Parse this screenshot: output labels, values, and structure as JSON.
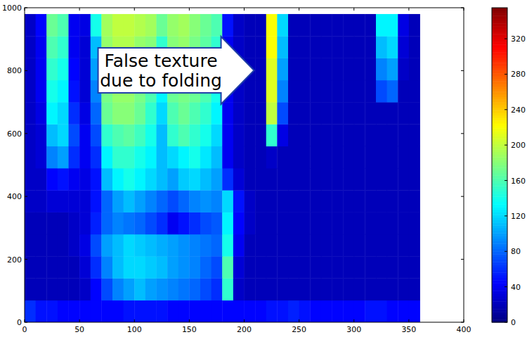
{
  "chart_data": {
    "type": "heatmap",
    "annotation": {
      "text": [
        "False texture",
        "due to folding"
      ],
      "xy": [
        209,
        801
      ]
    },
    "xlim": [
      0,
      400
    ],
    "ylim": [
      0,
      1000
    ],
    "xticks": [
      0,
      50,
      100,
      150,
      200,
      250,
      300,
      350,
      400
    ],
    "yticks": [
      0,
      200,
      400,
      600,
      800,
      1000
    ],
    "grid": false,
    "x_bins": [
      0,
      10,
      20,
      30,
      40,
      50,
      60,
      70,
      80,
      90,
      100,
      110,
      120,
      130,
      140,
      150,
      160,
      170,
      180,
      190,
      200,
      210,
      220,
      230,
      240,
      250,
      260,
      270,
      280,
      290,
      300,
      310,
      320,
      330,
      340,
      350,
      360
    ],
    "y_bins": [
      0,
      70,
      140,
      210,
      280,
      350,
      420,
      490,
      560,
      630,
      700,
      770,
      840,
      910,
      980
    ],
    "cells": [
      [
        60,
        50,
        50,
        45,
        45,
        45,
        45,
        45,
        45,
        50,
        50,
        50,
        50,
        45,
        45,
        45,
        45,
        45,
        45,
        45,
        45,
        45,
        50,
        50,
        55,
        50,
        45,
        45,
        45,
        45,
        45,
        50,
        50,
        45,
        45,
        45
      ],
      [
        20,
        20,
        20,
        20,
        20,
        25,
        45,
        70,
        90,
        100,
        110,
        100,
        95,
        90,
        85,
        80,
        70,
        60,
        150,
        25,
        20,
        20,
        20,
        20,
        20,
        20,
        20,
        20,
        20,
        20,
        20,
        20,
        20,
        20,
        20,
        20
      ],
      [
        20,
        20,
        20,
        20,
        20,
        30,
        60,
        90,
        110,
        120,
        120,
        115,
        110,
        100,
        95,
        90,
        80,
        70,
        160,
        30,
        20,
        20,
        20,
        20,
        20,
        20,
        20,
        20,
        20,
        20,
        20,
        20,
        20,
        20,
        20,
        20
      ],
      [
        20,
        20,
        20,
        20,
        25,
        35,
        70,
        100,
        110,
        120,
        115,
        110,
        105,
        100,
        95,
        90,
        85,
        80,
        140,
        40,
        20,
        20,
        20,
        20,
        20,
        20,
        20,
        20,
        20,
        20,
        20,
        20,
        20,
        20,
        20,
        20
      ],
      [
        20,
        20,
        20,
        20,
        25,
        30,
        55,
        80,
        90,
        85,
        80,
        70,
        60,
        40,
        50,
        60,
        70,
        75,
        130,
        45,
        25,
        20,
        20,
        20,
        20,
        20,
        20,
        20,
        20,
        20,
        20,
        20,
        20,
        20,
        20,
        20
      ],
      [
        25,
        25,
        30,
        30,
        30,
        30,
        50,
        80,
        100,
        110,
        100,
        90,
        80,
        70,
        80,
        90,
        95,
        90,
        120,
        50,
        25,
        20,
        20,
        20,
        20,
        20,
        20,
        20,
        20,
        20,
        20,
        20,
        20,
        20,
        20,
        20
      ],
      [
        25,
        25,
        45,
        50,
        40,
        35,
        50,
        110,
        130,
        140,
        130,
        120,
        110,
        100,
        115,
        120,
        110,
        100,
        60,
        30,
        20,
        20,
        20,
        20,
        20,
        20,
        20,
        20,
        20,
        20,
        20,
        20,
        20,
        20,
        20,
        20
      ],
      [
        25,
        30,
        90,
        100,
        60,
        40,
        60,
        130,
        150,
        150,
        140,
        130,
        110,
        120,
        130,
        140,
        125,
        110,
        40,
        25,
        20,
        20,
        25,
        20,
        20,
        20,
        20,
        20,
        20,
        20,
        20,
        20,
        20,
        20,
        20,
        20
      ],
      [
        25,
        30,
        110,
        120,
        70,
        40,
        70,
        150,
        160,
        165,
        155,
        140,
        110,
        150,
        160,
        150,
        140,
        120,
        40,
        25,
        20,
        20,
        150,
        35,
        20,
        20,
        20,
        20,
        20,
        20,
        20,
        20,
        20,
        20,
        20,
        20
      ],
      [
        25,
        35,
        130,
        120,
        60,
        35,
        80,
        170,
        180,
        180,
        170,
        150,
        120,
        160,
        170,
        160,
        150,
        130,
        40,
        25,
        20,
        20,
        200,
        70,
        20,
        20,
        20,
        20,
        20,
        20,
        20,
        20,
        20,
        20,
        20,
        20
      ],
      [
        25,
        40,
        140,
        130,
        50,
        30,
        90,
        175,
        185,
        185,
        175,
        160,
        130,
        170,
        175,
        170,
        160,
        140,
        40,
        25,
        20,
        20,
        210,
        90,
        20,
        20,
        20,
        20,
        20,
        20,
        20,
        20,
        70,
        80,
        20,
        20
      ],
      [
        25,
        40,
        150,
        140,
        45,
        30,
        100,
        180,
        190,
        190,
        180,
        170,
        140,
        175,
        180,
        170,
        160,
        145,
        40,
        25,
        20,
        20,
        210,
        100,
        20,
        20,
        20,
        20,
        20,
        20,
        20,
        20,
        90,
        100,
        25,
        20
      ],
      [
        25,
        40,
        160,
        150,
        40,
        30,
        110,
        185,
        195,
        195,
        185,
        180,
        150,
        180,
        185,
        175,
        165,
        150,
        40,
        25,
        20,
        20,
        220,
        110,
        20,
        20,
        20,
        20,
        20,
        20,
        20,
        20,
        110,
        120,
        30,
        20
      ],
      [
        25,
        45,
        170,
        160,
        40,
        35,
        140,
        190,
        200,
        200,
        195,
        190,
        170,
        185,
        190,
        180,
        170,
        160,
        50,
        25,
        20,
        20,
        220,
        120,
        20,
        20,
        20,
        20,
        20,
        20,
        20,
        20,
        130,
        130,
        35,
        20
      ]
    ],
    "colorbar": {
      "range": [
        0,
        355
      ],
      "ticks": [
        0,
        40,
        80,
        120,
        160,
        200,
        240,
        280,
        320
      ]
    }
  }
}
